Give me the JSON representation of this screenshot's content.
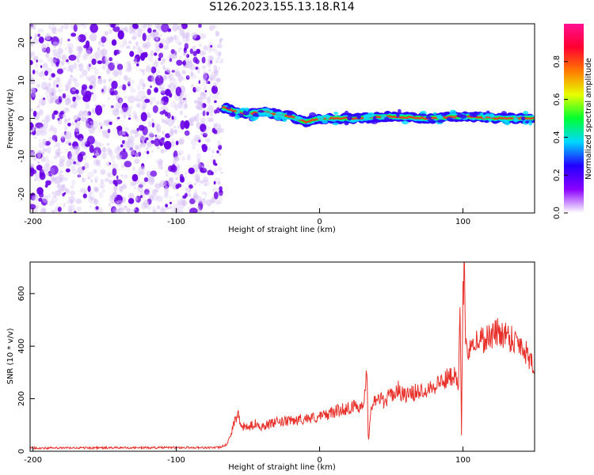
{
  "title": "S126.2023.155.13.18.R14",
  "colors": {
    "series_line": "#e8302a",
    "scatter_noise_dark": "#6a00e6",
    "scatter_noise_light": "#d7c2f5"
  },
  "chart_data": [
    {
      "type": "heatmap",
      "xlabel": "Height of straight line (km)",
      "ylabel": "Frequency (Hz)",
      "xlim": [
        -202,
        150
      ],
      "ylim": [
        -25,
        25
      ],
      "x_ticks": [
        "-200",
        "-100",
        "0",
        "100"
      ],
      "x_tick_values": [
        -200,
        -100,
        0,
        100
      ],
      "y_ticks": [
        "-20",
        "-10",
        "0",
        "10",
        "20"
      ],
      "y_tick_values": [
        -20,
        -10,
        0,
        10,
        20
      ],
      "noise_region": [
        -202,
        -68
      ],
      "signal_track": {
        "x": [
          -68,
          -60,
          -50,
          -40,
          -30,
          -20,
          -10,
          0,
          25,
          50,
          75,
          100,
          125,
          150
        ],
        "frequency": [
          3,
          2,
          1,
          2,
          1,
          0.5,
          -1,
          0,
          0,
          0.5,
          0,
          0.5,
          0,
          0
        ]
      },
      "colorbar": {
        "label": "Normalized spectral amplitude",
        "range": [
          0,
          1
        ],
        "ticks": [
          "0.0",
          "0.2",
          "0.4",
          "0.6",
          "0.8"
        ],
        "tick_values": [
          0,
          0.2,
          0.4,
          0.6,
          0.8
        ],
        "stops": [
          "#ffffff",
          "#8a00ff",
          "#2200ff",
          "#00d8ff",
          "#00ff30",
          "#e8ff00",
          "#ff7a00",
          "#ff0030",
          "#ff1090"
        ]
      },
      "grid": false
    },
    {
      "type": "line",
      "xlabel": "Height of straight line (km)",
      "ylabel": "SNR (10 * v/v)",
      "xlim": [
        -202,
        150
      ],
      "ylim": [
        0,
        720
      ],
      "x_ticks": [
        "-200",
        "-100",
        "0",
        "100"
      ],
      "x_tick_values": [
        -200,
        -100,
        0,
        100
      ],
      "y_ticks": [
        "0",
        "200",
        "400",
        "600"
      ],
      "y_tick_values": [
        0,
        200,
        400,
        600
      ],
      "series": [
        {
          "x": [
            -202,
            -150,
            -100,
            -70,
            -65,
            -62,
            -60,
            -57,
            -55,
            -50,
            -45,
            -40,
            -30,
            -20,
            -10,
            0,
            10,
            20,
            30,
            33,
            34,
            36,
            40,
            45,
            50,
            55,
            60,
            70,
            80,
            90,
            95,
            97,
            98,
            99,
            100,
            101,
            102,
            105,
            110,
            120,
            125,
            130,
            140,
            150
          ],
          "y": [
            12,
            13,
            14,
            14,
            25,
            60,
            110,
            140,
            95,
            90,
            105,
            95,
            110,
            115,
            125,
            130,
            150,
            165,
            175,
            290,
            35,
            180,
            205,
            190,
            215,
            235,
            210,
            230,
            250,
            280,
            300,
            260,
            530,
            50,
            575,
            720,
            380,
            410,
            420,
            440,
            455,
            445,
            410,
            330
          ]
        }
      ],
      "grid": false
    }
  ]
}
